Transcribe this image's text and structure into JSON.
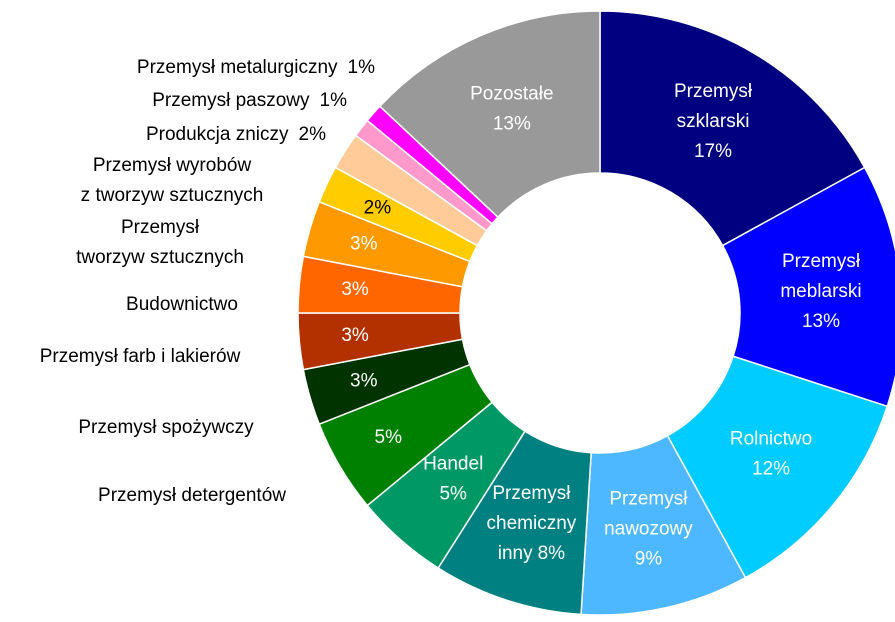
{
  "chart_data": {
    "type": "donut",
    "labels": [
      [
        "Przemysł",
        "szklarski"
      ],
      [
        "Przemysł",
        "meblarski"
      ],
      [
        "Rolnictwo"
      ],
      [
        "Przemysł",
        "nawozowy"
      ],
      [
        "Przemysł",
        "chemiczny",
        "inny"
      ],
      [
        "Handel"
      ],
      [
        "Przemysł detergentów"
      ],
      [
        "Przemysł spożywczy"
      ],
      [
        "Przemysł farb i lakierów"
      ],
      [
        "Budownictwo"
      ],
      [
        "Przemysł",
        "tworzyw sztucznych"
      ],
      [
        "Przemysł wyrobów",
        "z tworzyw sztucznych"
      ],
      [
        "Produkcja zniczy"
      ],
      [
        "Przemysł paszowy"
      ],
      [
        "Przemysł metalurgiczny"
      ],
      [
        "Pozostałe"
      ]
    ],
    "values": [
      17,
      13,
      12,
      9,
      8,
      5,
      5,
      3,
      3,
      3,
      3,
      2,
      2,
      1,
      1,
      13
    ],
    "value_labels": [
      "17%",
      "13%",
      "12%",
      "9%",
      "8%",
      "5%",
      "5%",
      "3%",
      "3%",
      "3%",
      "3%",
      "2%",
      "2%",
      "1%",
      "1%",
      "13%"
    ],
    "colors": [
      "#000080",
      "#0000ff",
      "#00ccff",
      "#4db8ff",
      "#008080",
      "#009966",
      "#008000",
      "#003300",
      "#b33000",
      "#ff6600",
      "#ff9900",
      "#ffcc00",
      "#ffcc99",
      "#ff99cc",
      "#ff00ff",
      "#999999"
    ]
  }
}
